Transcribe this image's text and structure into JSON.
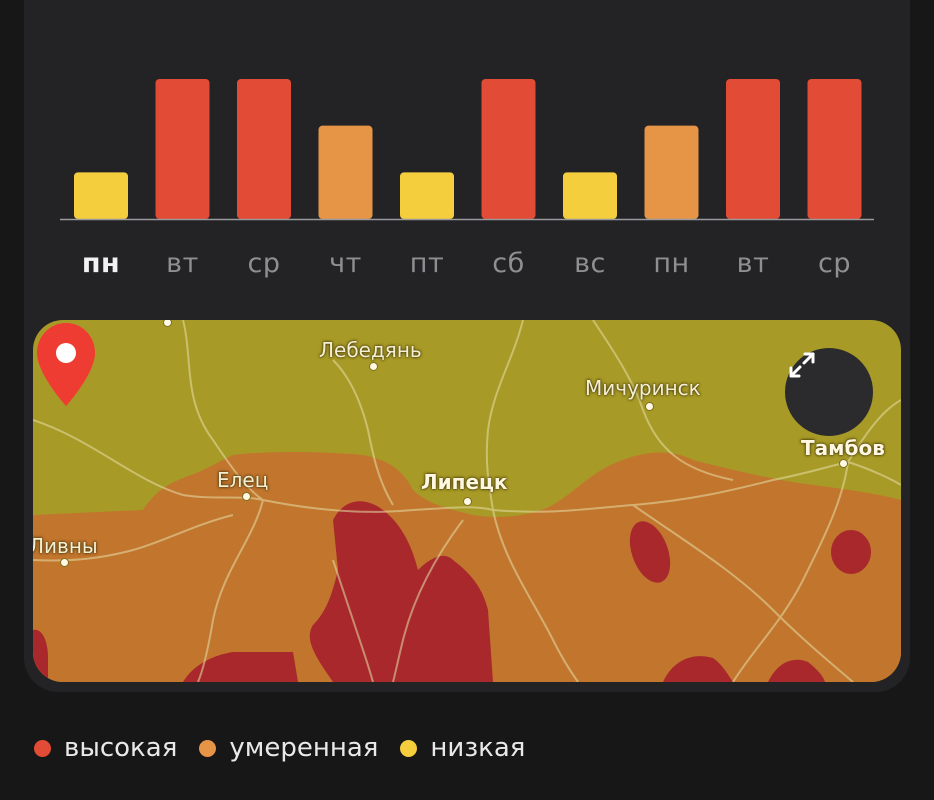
{
  "chart_data": {
    "type": "bar",
    "categories": [
      "пн",
      "вт",
      "ср",
      "чт",
      "пт",
      "сб",
      "вс",
      "пн",
      "вт",
      "ср"
    ],
    "values": [
      1,
      3,
      3,
      2,
      1,
      3,
      1,
      2,
      3,
      3
    ],
    "levels": [
      "низкая",
      "высокая",
      "высокая",
      "умеренная",
      "низкая",
      "высокая",
      "низкая",
      "умеренная",
      "высокая",
      "высокая"
    ],
    "highlighted_index": 0,
    "colors": {
      "высокая": "#e24b35",
      "умеренная": "#e69446",
      "низкая": "#f4ce3d"
    },
    "ylim": [
      0,
      3
    ]
  },
  "map": {
    "cities": [
      "Лебедянь",
      "Мичуринск",
      "Тамбов",
      "Елец",
      "Липецк",
      "Ливны"
    ],
    "pin": "location-pin",
    "expand_icon": "expand-arrows-icon"
  },
  "legend": [
    {
      "label": "высокая",
      "color": "#e24b35"
    },
    {
      "label": "умеренная",
      "color": "#e69446"
    },
    {
      "label": "низкая",
      "color": "#f4ce3d"
    }
  ]
}
